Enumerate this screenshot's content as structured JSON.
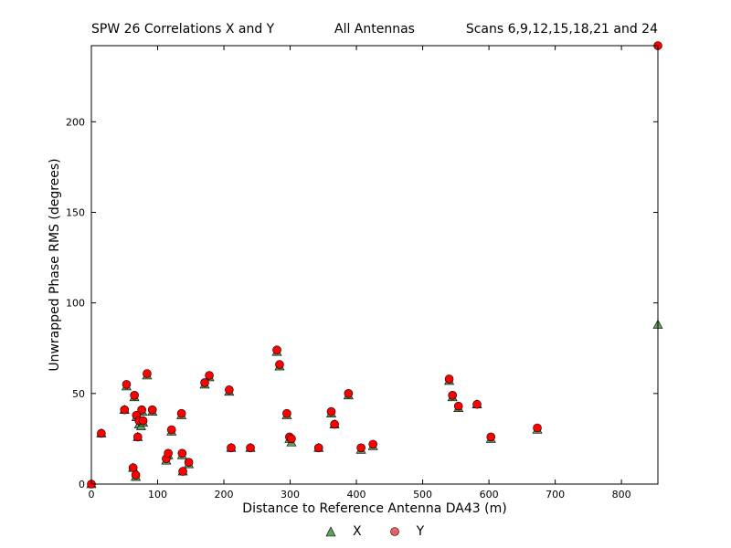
{
  "header": {
    "left": "SPW 26 Correlations X and Y",
    "center": "All Antennas",
    "right": "Scans 6,9,12,15,18,21 and 24"
  },
  "colors": {
    "x_series": "#5fa05f",
    "y_series": "#ff0000",
    "y_legend": "#e86060",
    "marker_edge": "#000000"
  },
  "chart_data": {
    "type": "scatter",
    "title": "",
    "xlabel": "Distance to Reference Antenna DA43 (m)",
    "ylabel": "Unwrapped Phase RMS (degrees)",
    "xlim": [
      0,
      855
    ],
    "ylim": [
      0,
      242
    ],
    "xticks": [
      0,
      100,
      200,
      300,
      400,
      500,
      600,
      700,
      800
    ],
    "yticks": [
      0,
      50,
      100,
      150,
      200
    ],
    "grid": false,
    "legend_position": "bottom",
    "series": [
      {
        "name": "X",
        "marker": "triangle",
        "points": [
          [
            0,
            0
          ],
          [
            15,
            28
          ],
          [
            50,
            41
          ],
          [
            53,
            54
          ],
          [
            63,
            9
          ],
          [
            65,
            48
          ],
          [
            67,
            4
          ],
          [
            68,
            37
          ],
          [
            70,
            26
          ],
          [
            72,
            33
          ],
          [
            75,
            32
          ],
          [
            77,
            40
          ],
          [
            78,
            34
          ],
          [
            84,
            60
          ],
          [
            92,
            40
          ],
          [
            113,
            13
          ],
          [
            116,
            16
          ],
          [
            121,
            29
          ],
          [
            136,
            38
          ],
          [
            137,
            16
          ],
          [
            138,
            7
          ],
          [
            147,
            11
          ],
          [
            171,
            55
          ],
          [
            178,
            59
          ],
          [
            208,
            51
          ],
          [
            211,
            20
          ],
          [
            240,
            20
          ],
          [
            280,
            73
          ],
          [
            284,
            65
          ],
          [
            295,
            38
          ],
          [
            299,
            25
          ],
          [
            302,
            23
          ],
          [
            343,
            20
          ],
          [
            362,
            39
          ],
          [
            367,
            33
          ],
          [
            388,
            49
          ],
          [
            407,
            19
          ],
          [
            425,
            21
          ],
          [
            540,
            57
          ],
          [
            545,
            48
          ],
          [
            554,
            42
          ],
          [
            582,
            44
          ],
          [
            603,
            25
          ],
          [
            673,
            30
          ],
          [
            855,
            88
          ]
        ]
      },
      {
        "name": "Y",
        "marker": "circle",
        "points": [
          [
            0,
            0
          ],
          [
            15,
            28
          ],
          [
            50,
            41
          ],
          [
            53,
            55
          ],
          [
            63,
            9
          ],
          [
            65,
            49
          ],
          [
            67,
            5
          ],
          [
            68,
            38
          ],
          [
            70,
            26
          ],
          [
            72,
            35
          ],
          [
            76,
            41
          ],
          [
            78,
            35
          ],
          [
            84,
            61
          ],
          [
            92,
            41
          ],
          [
            113,
            14
          ],
          [
            116,
            17
          ],
          [
            121,
            30
          ],
          [
            136,
            39
          ],
          [
            137,
            17
          ],
          [
            138,
            7
          ],
          [
            147,
            12
          ],
          [
            171,
            56
          ],
          [
            178,
            60
          ],
          [
            208,
            52
          ],
          [
            211,
            20
          ],
          [
            240,
            20
          ],
          [
            280,
            74
          ],
          [
            284,
            66
          ],
          [
            295,
            39
          ],
          [
            299,
            26
          ],
          [
            302,
            25
          ],
          [
            343,
            20
          ],
          [
            362,
            40
          ],
          [
            367,
            33
          ],
          [
            388,
            50
          ],
          [
            407,
            20
          ],
          [
            425,
            22
          ],
          [
            540,
            58
          ],
          [
            545,
            49
          ],
          [
            554,
            43
          ],
          [
            582,
            44
          ],
          [
            603,
            26
          ],
          [
            673,
            31
          ],
          [
            855,
            242
          ]
        ]
      }
    ]
  }
}
